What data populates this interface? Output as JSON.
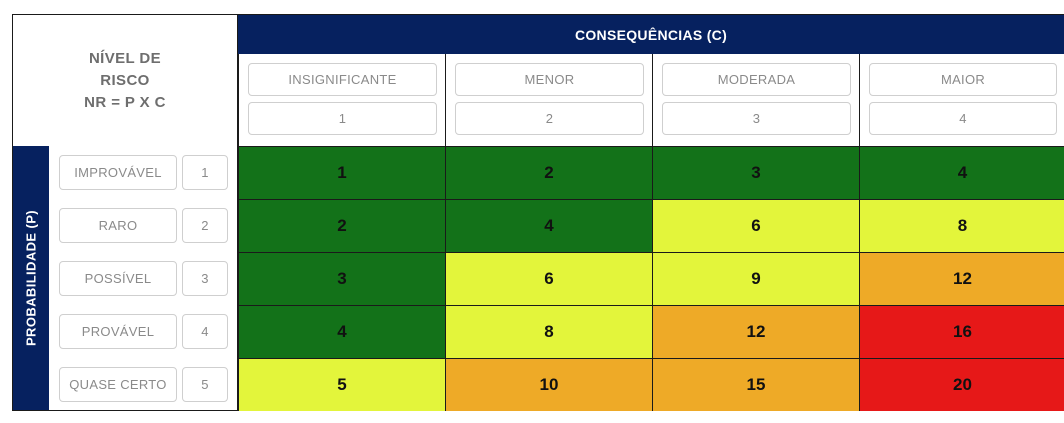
{
  "corner": {
    "line1": "NÍVEL DE",
    "line2": "RISCO",
    "line3": "NR = P X C"
  },
  "consequences": {
    "title": "CONSEQUÊNCIAS (C)",
    "levels": [
      {
        "label": "INSIGNIFICANTE",
        "value": "1"
      },
      {
        "label": "MENOR",
        "value": "2"
      },
      {
        "label": "MODERADA",
        "value": "3"
      },
      {
        "label": "MAIOR",
        "value": "4"
      }
    ]
  },
  "probability": {
    "title": "PROBABILIDADE (P)",
    "levels": [
      {
        "label": "IMPROVÁVEL",
        "value": "1"
      },
      {
        "label": "RARO",
        "value": "2"
      },
      {
        "label": "POSSÍVEL",
        "value": "3"
      },
      {
        "label": "PROVÁVEL",
        "value": "4"
      },
      {
        "label": "QUASE CERTO",
        "value": "5"
      }
    ]
  },
  "matrix": [
    [
      "1",
      "2",
      "3",
      "4"
    ],
    [
      "2",
      "4",
      "6",
      "8"
    ],
    [
      "3",
      "6",
      "9",
      "12"
    ],
    [
      "4",
      "8",
      "12",
      "16"
    ],
    [
      "5",
      "10",
      "15",
      "20"
    ]
  ],
  "risk_colors": {
    "low": "#137219",
    "medium": "#e3f53b",
    "high": "#eeaa27",
    "critical": "#e61818"
  },
  "thresholds": {
    "low_max": 4,
    "medium_max": 9,
    "high_max": 15
  },
  "theme": {
    "header_bg": "#06215f",
    "header_text": "#ffffff"
  }
}
